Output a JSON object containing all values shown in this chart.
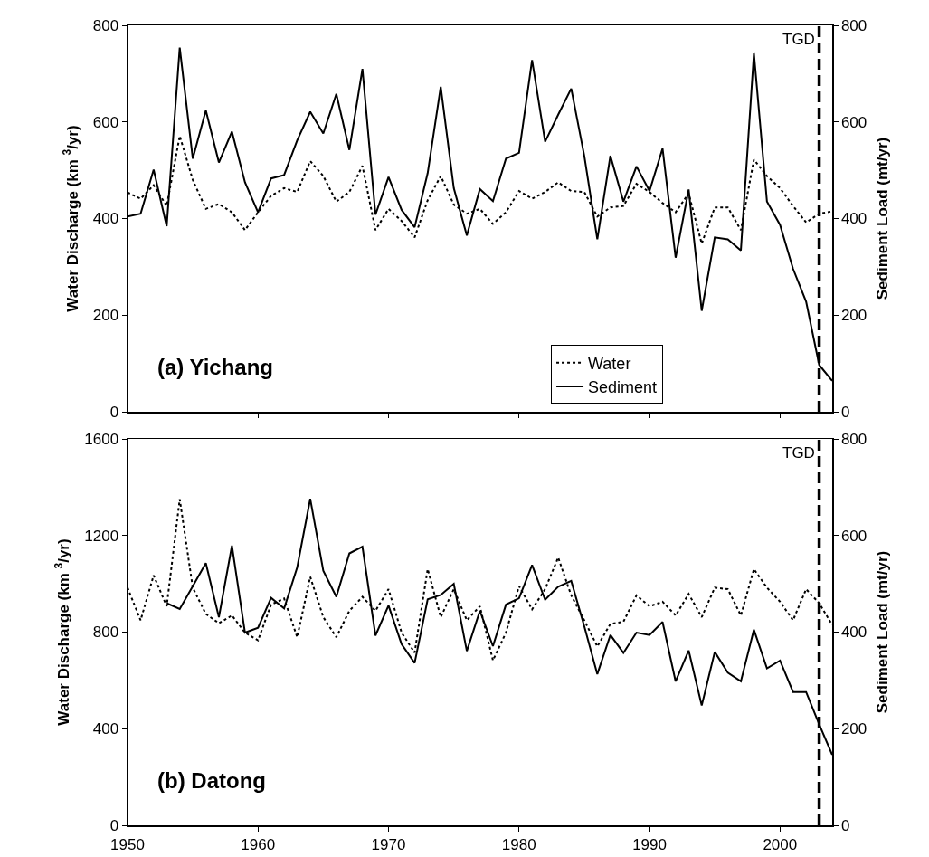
{
  "chart_data": [
    {
      "type": "line",
      "annotations": [
        "(a) Yichang"
      ],
      "ylabel": "Water Discharge (km $^{3}$/yr)",
      "y2label": "Sediment Load (mt/yr)",
      "x": [
        1950,
        1951,
        1952,
        1953,
        1954,
        1955,
        1956,
        1957,
        1958,
        1959,
        1960,
        1961,
        1962,
        1963,
        1964,
        1965,
        1966,
        1967,
        1968,
        1969,
        1970,
        1971,
        1972,
        1973,
        1974,
        1975,
        1976,
        1977,
        1978,
        1979,
        1980,
        1981,
        1982,
        1983,
        1984,
        1985,
        1986,
        1987,
        1988,
        1989,
        1990,
        1991,
        1992,
        1993,
        1994,
        1995,
        1996,
        1997,
        1998,
        1999,
        2000,
        2001,
        2002,
        2003,
        2004
      ],
      "series": [
        {
          "name": "Water",
          "color": "#000000",
          "line_style": "dotted",
          "values": [
            454,
            441,
            469,
            426,
            571,
            480,
            420,
            430,
            413,
            376,
            413,
            447,
            463,
            455,
            519,
            488,
            435,
            455,
            509,
            376,
            420,
            395,
            361,
            438,
            488,
            429,
            410,
            420,
            389,
            413,
            457,
            441,
            455,
            475,
            457,
            455,
            404,
            423,
            426,
            472,
            455,
            432,
            413,
            452,
            348,
            423,
            423,
            376,
            522,
            488,
            463,
            426,
            392,
            410,
            415
          ]
        },
        {
          "name": "Sediment",
          "color": "#000000",
          "line_style": "solid",
          "axis": "y2",
          "values": [
            404,
            410,
            501,
            384,
            754,
            524,
            624,
            516,
            580,
            475,
            413,
            483,
            490,
            562,
            621,
            576,
            658,
            542,
            710,
            408,
            486,
            418,
            382,
            494,
            673,
            463,
            365,
            461,
            436,
            524,
            536,
            728,
            559,
            615,
            669,
            530,
            357,
            530,
            435,
            508,
            457,
            545,
            319,
            460,
            209,
            361,
            357,
            334,
            742,
            435,
            387,
            296,
            228,
            97,
            64
          ]
        }
      ],
      "xlim": [
        1950,
        2004
      ],
      "xticks": [
        1950,
        1960,
        1970,
        1980,
        1990,
        2000
      ],
      "ylim": [
        0,
        800
      ],
      "yticks": [
        0,
        200,
        400,
        600,
        800
      ],
      "y2lim": [
        0,
        800
      ],
      "y2ticks": [
        0,
        200,
        400,
        600,
        800
      ],
      "ref_lines": [
        {
          "axis": "x",
          "value": 2003,
          "label": "TGD",
          "line_style": "dashed",
          "color": "#000000"
        }
      ],
      "tick_labels": "y",
      "legend": "bottom right",
      "grid": false,
      "marker": "none"
    },
    {
      "type": "line",
      "annotations": [
        "(b) Datong"
      ],
      "ylabel": "Water Discharge (km $^{3}$/yr)",
      "y2label": "Sediment Load (mt/yr)",
      "x": [
        1950,
        1951,
        1952,
        1953,
        1954,
        1955,
        1956,
        1957,
        1958,
        1959,
        1960,
        1961,
        1962,
        1963,
        1964,
        1965,
        1966,
        1967,
        1968,
        1969,
        1970,
        1971,
        1972,
        1973,
        1974,
        1975,
        1976,
        1977,
        1978,
        1979,
        1980,
        1981,
        1982,
        1983,
        1984,
        1985,
        1986,
        1987,
        1988,
        1989,
        1990,
        1991,
        1992,
        1993,
        1994,
        1995,
        1996,
        1997,
        1998,
        1999,
        2000,
        2001,
        2002,
        2003,
        2004
      ],
      "series": [
        {
          "color": "#000000",
          "line_style": "dotted",
          "values": [
            984,
            849,
            1035,
            907,
            1350,
            984,
            875,
            837,
            869,
            798,
            766,
            914,
            939,
            779,
            1029,
            862,
            779,
            888,
            946,
            888,
            978,
            798,
            715,
            1061,
            862,
            978,
            849,
            907,
            683,
            798,
            991,
            894,
            978,
            1109,
            952,
            849,
            741,
            834,
            843,
            952,
            907,
            926,
            869,
            958,
            862,
            984,
            978,
            869,
            1061,
            984,
            926,
            849,
            978,
            920,
            830
          ]
        },
        {
          "color": "#000000",
          "line_style": "solid",
          "axis": "y2",
          "values": [
            null,
            null,
            null,
            460,
            448,
            495,
            543,
            431,
            579,
            399,
            409,
            471,
            449,
            534,
            676,
            527,
            473,
            563,
            577,
            393,
            455,
            375,
            336,
            468,
            477,
            500,
            361,
            444,
            371,
            457,
            470,
            539,
            467,
            494,
            506,
            412,
            313,
            394,
            357,
            399,
            394,
            421,
            298,
            362,
            248,
            359,
            316,
            298,
            405,
            325,
            341,
            276,
            276,
            209,
            146
          ]
        }
      ],
      "xlim": [
        1950,
        2004
      ],
      "xticks": [
        1950,
        1960,
        1970,
        1980,
        1990,
        2000
      ],
      "ylim": [
        0,
        1600
      ],
      "yticks": [
        0,
        400,
        800,
        1200,
        1600
      ],
      "y2lim": [
        0,
        800
      ],
      "y2ticks": [
        0,
        200,
        400,
        600,
        800
      ],
      "ref_lines": [
        {
          "axis": "x",
          "value": 2003,
          "label": "TGD",
          "line_style": "dashed",
          "color": "#000000"
        }
      ],
      "grid": false,
      "marker": "none"
    }
  ]
}
